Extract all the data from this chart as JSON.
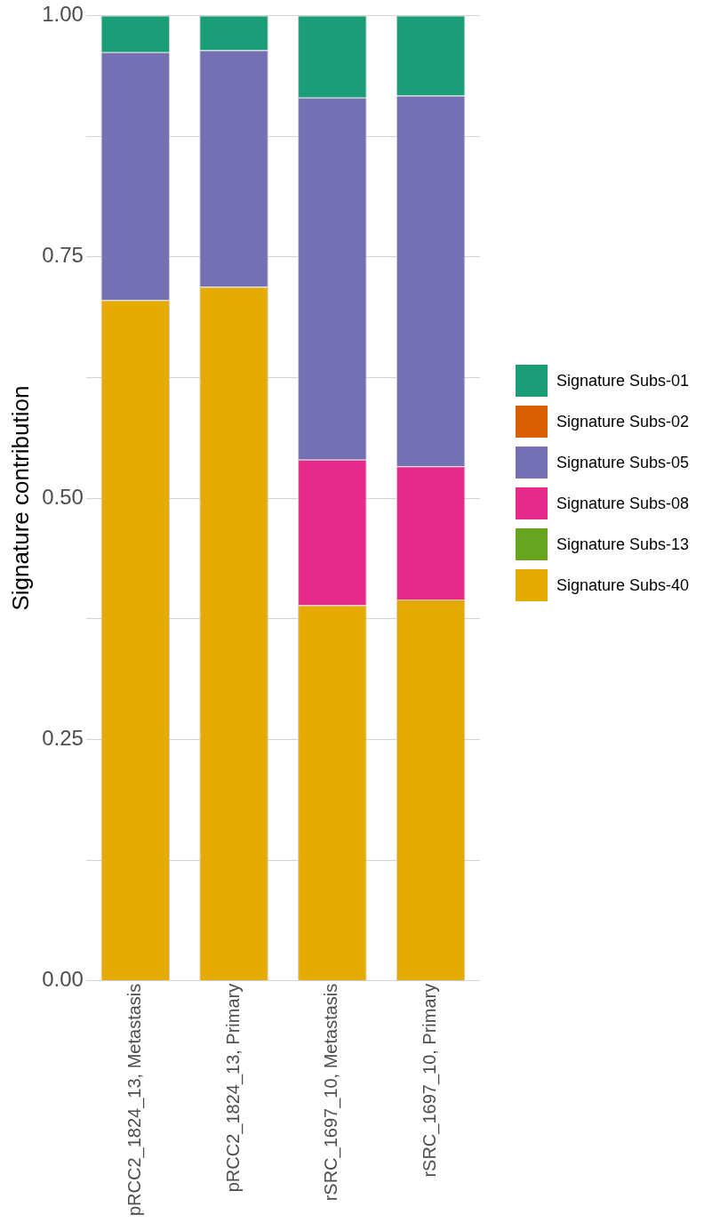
{
  "chart_data": {
    "type": "bar",
    "stacked": true,
    "ylabel": "Signature contribution",
    "categories": [
      "pRCC2_1824_13, Metastasis",
      "pRCC2_1824_13, Primary",
      "rSRC_1697_10, Metastasis",
      "rSRC_1697_10, Primary"
    ],
    "series": [
      {
        "name": "Signature Subs-40",
        "color": "#e6ab02",
        "values": [
          0.705,
          0.719,
          0.389,
          0.395
        ]
      },
      {
        "name": "Signature Subs-13",
        "color": "#66a61e",
        "values": [
          0,
          0,
          0,
          0
        ]
      },
      {
        "name": "Signature Subs-08",
        "color": "#e7298a",
        "values": [
          0,
          0,
          0.151,
          0.138
        ]
      },
      {
        "name": "Signature Subs-05",
        "color": "#7570b3",
        "values": [
          0.257,
          0.245,
          0.375,
          0.384
        ]
      },
      {
        "name": "Signature Subs-02",
        "color": "#d95f02",
        "values": [
          0,
          0,
          0,
          0
        ]
      },
      {
        "name": "Signature Subs-01",
        "color": "#1b9e77",
        "values": [
          0.038,
          0.036,
          0.085,
          0.083
        ]
      }
    ],
    "ylim": [
      0,
      1
    ],
    "yticks": [
      {
        "value": 0,
        "label": "0.00"
      },
      {
        "value": 0.125,
        "label": null
      },
      {
        "value": 0.25,
        "label": "0.25"
      },
      {
        "value": 0.375,
        "label": null
      },
      {
        "value": 0.5,
        "label": "0.50"
      },
      {
        "value": 0.625,
        "label": null
      },
      {
        "value": 0.75,
        "label": "0.75"
      },
      {
        "value": 0.875,
        "label": null
      },
      {
        "value": 1,
        "label": "1.00"
      }
    ],
    "grid": "y",
    "legend": "right"
  }
}
